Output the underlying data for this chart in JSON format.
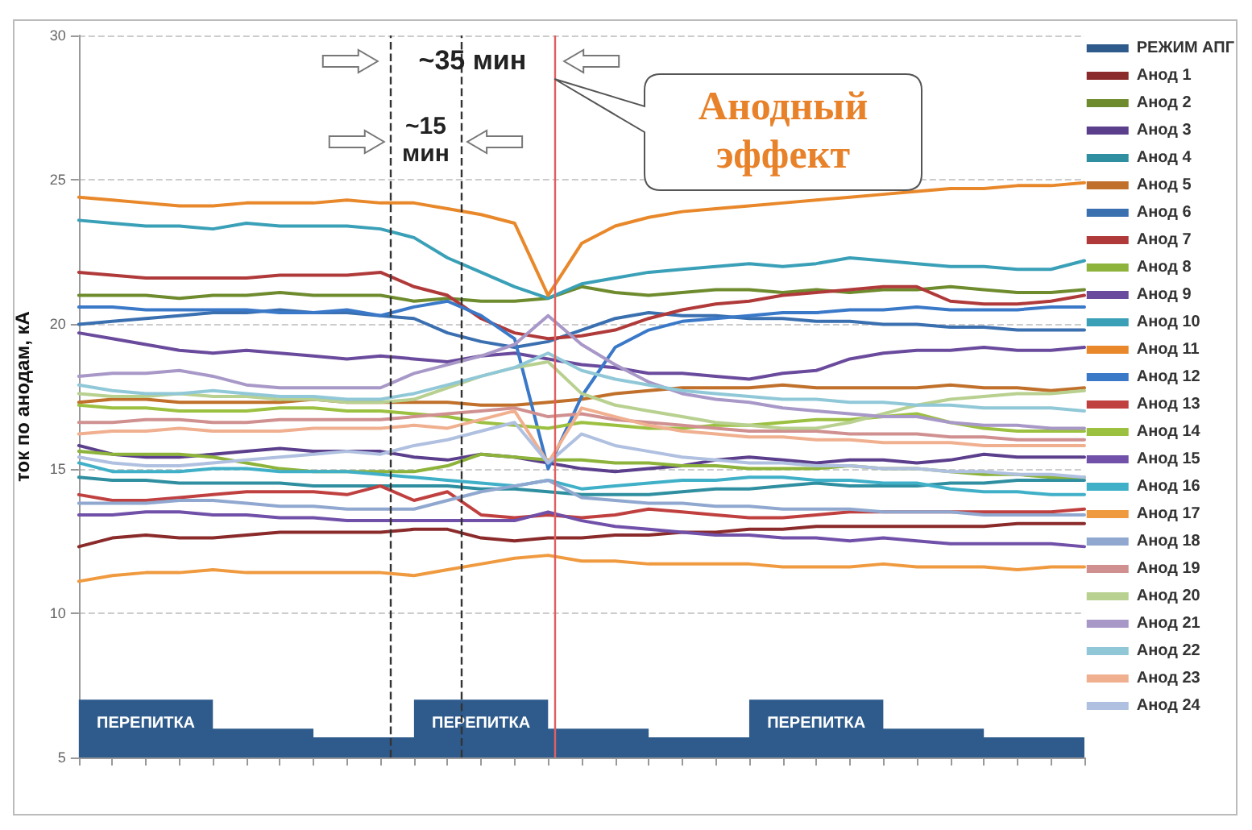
{
  "chart_data": {
    "type": "line",
    "ylabel": "ток по анодам, кА",
    "ylim": [
      5,
      30
    ],
    "yticks": [
      5,
      10,
      15,
      20,
      25,
      30
    ],
    "grid": "y",
    "legend": "right",
    "line_style": "solid",
    "categories": [
      null,
      null,
      null,
      null,
      null,
      null,
      null,
      null,
      null,
      null,
      null,
      null,
      null,
      null,
      null,
      null,
      null,
      null,
      null,
      null,
      null,
      null,
      null,
      null,
      null,
      null,
      null,
      null,
      null,
      null,
      null
    ],
    "annotations": [
      "~35 мин",
      "~15 мин",
      "Анодный эффект"
    ],
    "series": [
      {
        "name": "РЕЖИМ АПГ",
        "type": "area",
        "color": "#2e5b8c",
        "values": [
          7,
          7,
          7,
          7,
          6,
          6,
          6,
          5.7,
          5.7,
          5.7,
          7,
          7,
          7,
          7,
          6,
          6,
          6,
          5.7,
          5.7,
          5.7,
          7,
          7,
          7,
          7,
          6,
          6,
          6,
          5.7,
          5.7,
          5.7,
          5.7
        ],
        "value_labels": [
          null,
          null,
          "ПЕРЕПИТКА",
          null,
          null,
          null,
          null,
          null,
          null,
          null,
          null,
          null,
          "ПЕРЕПИТКА",
          null,
          null,
          null,
          null,
          null,
          null,
          null,
          null,
          null,
          "ПЕРЕПИТКА",
          null,
          null,
          null,
          null,
          null,
          null,
          null,
          null
        ]
      },
      {
        "name": "Анод 1",
        "color": "#8b2a2a",
        "values": [
          12.3,
          12.6,
          12.7,
          12.6,
          12.6,
          12.7,
          12.8,
          12.8,
          12.8,
          12.8,
          12.9,
          12.9,
          12.6,
          12.5,
          12.6,
          12.6,
          12.7,
          12.7,
          12.8,
          12.8,
          12.9,
          12.9,
          13.0,
          13.0,
          13.0,
          13.0,
          13.0,
          13.0,
          13.1,
          13.1,
          13.1
        ]
      },
      {
        "name": "Анод 2",
        "color": "#6e8b2e",
        "values": [
          21.0,
          21.0,
          21.0,
          20.9,
          21.0,
          21.0,
          21.1,
          21.0,
          21.0,
          21.0,
          20.8,
          20.9,
          20.8,
          20.8,
          20.9,
          21.3,
          21.1,
          21.0,
          21.1,
          21.2,
          21.2,
          21.1,
          21.2,
          21.1,
          21.2,
          21.2,
          21.3,
          21.2,
          21.1,
          21.1,
          21.2
        ]
      },
      {
        "name": "Анод 3",
        "color": "#5b3f8c",
        "values": [
          15.8,
          15.5,
          15.4,
          15.4,
          15.5,
          15.6,
          15.7,
          15.6,
          15.6,
          15.6,
          15.4,
          15.3,
          15.5,
          15.4,
          15.2,
          15.0,
          14.9,
          15.0,
          15.1,
          15.3,
          15.4,
          15.3,
          15.2,
          15.3,
          15.3,
          15.2,
          15.3,
          15.5,
          15.4,
          15.4,
          15.4
        ]
      },
      {
        "name": "Анод 4",
        "color": "#2f8fa0",
        "values": [
          14.7,
          14.6,
          14.6,
          14.5,
          14.5,
          14.5,
          14.5,
          14.4,
          14.4,
          14.4,
          14.4,
          14.4,
          14.3,
          14.3,
          14.2,
          14.1,
          14.1,
          14.1,
          14.2,
          14.3,
          14.3,
          14.4,
          14.5,
          14.4,
          14.4,
          14.4,
          14.5,
          14.5,
          14.6,
          14.6,
          14.6
        ]
      },
      {
        "name": "Анод 5",
        "color": "#c0702a",
        "values": [
          17.3,
          17.4,
          17.4,
          17.3,
          17.3,
          17.3,
          17.3,
          17.4,
          17.3,
          17.3,
          17.3,
          17.3,
          17.2,
          17.2,
          17.3,
          17.4,
          17.6,
          17.7,
          17.8,
          17.8,
          17.8,
          17.9,
          17.8,
          17.8,
          17.8,
          17.8,
          17.9,
          17.8,
          17.8,
          17.7,
          17.8
        ]
      },
      {
        "name": "Анод 6",
        "color": "#3a6fb0",
        "values": [
          20.0,
          20.1,
          20.2,
          20.3,
          20.4,
          20.4,
          20.5,
          20.4,
          20.4,
          20.3,
          20.2,
          19.7,
          19.4,
          19.2,
          19.4,
          19.8,
          20.2,
          20.4,
          20.3,
          20.3,
          20.2,
          20.2,
          20.1,
          20.1,
          20.0,
          20.0,
          19.9,
          19.9,
          19.8,
          19.8,
          19.8
        ]
      },
      {
        "name": "Анод 7",
        "color": "#b03a3a",
        "values": [
          21.8,
          21.7,
          21.6,
          21.6,
          21.6,
          21.6,
          21.7,
          21.7,
          21.7,
          21.8,
          21.3,
          21.0,
          20.2,
          19.7,
          19.5,
          19.6,
          19.8,
          20.2,
          20.5,
          20.7,
          20.8,
          21.0,
          21.1,
          21.2,
          21.3,
          21.3,
          20.8,
          20.7,
          20.7,
          20.8,
          21.0
        ]
      },
      {
        "name": "Анод 8",
        "color": "#8db33a",
        "values": [
          15.6,
          15.5,
          15.5,
          15.5,
          15.4,
          15.2,
          15.0,
          14.9,
          14.9,
          14.9,
          14.9,
          15.1,
          15.5,
          15.4,
          15.3,
          15.3,
          15.2,
          15.2,
          15.1,
          15.1,
          15.0,
          15.0,
          15.0,
          15.1,
          15.0,
          15.0,
          14.9,
          14.8,
          14.8,
          14.7,
          14.7
        ]
      },
      {
        "name": "Анод 9",
        "color": "#6a4a9c",
        "values": [
          19.7,
          19.5,
          19.3,
          19.1,
          19.0,
          19.1,
          19.0,
          18.9,
          18.8,
          18.9,
          18.8,
          18.7,
          18.9,
          19.0,
          18.8,
          18.6,
          18.5,
          18.3,
          18.3,
          18.2,
          18.1,
          18.3,
          18.4,
          18.8,
          19.0,
          19.1,
          19.1,
          19.2,
          19.1,
          19.1,
          19.2
        ]
      },
      {
        "name": "Анод 10",
        "color": "#3aa0b8",
        "values": [
          23.6,
          23.5,
          23.4,
          23.4,
          23.3,
          23.5,
          23.4,
          23.4,
          23.4,
          23.3,
          23.0,
          22.3,
          21.8,
          21.3,
          20.9,
          21.4,
          21.6,
          21.8,
          21.9,
          22.0,
          22.1,
          22.0,
          22.1,
          22.3,
          22.2,
          22.1,
          22.0,
          22.0,
          21.9,
          21.9,
          22.2
        ]
      },
      {
        "name": "Анод 11",
        "color": "#e8882a",
        "values": [
          24.4,
          24.3,
          24.2,
          24.1,
          24.1,
          24.2,
          24.2,
          24.2,
          24.3,
          24.2,
          24.2,
          24.0,
          23.8,
          23.5,
          21.0,
          22.8,
          23.4,
          23.7,
          23.9,
          24.0,
          24.1,
          24.2,
          24.3,
          24.4,
          24.5,
          24.6,
          24.7,
          24.7,
          24.8,
          24.8,
          24.9
        ]
      },
      {
        "name": "Анод 12",
        "color": "#3a78c8",
        "values": [
          20.6,
          20.6,
          20.5,
          20.5,
          20.5,
          20.5,
          20.4,
          20.4,
          20.5,
          20.3,
          20.6,
          20.8,
          20.3,
          19.5,
          15.0,
          17.5,
          19.2,
          19.8,
          20.1,
          20.2,
          20.3,
          20.4,
          20.4,
          20.5,
          20.5,
          20.6,
          20.5,
          20.5,
          20.5,
          20.6,
          20.6
        ]
      },
      {
        "name": "Анод 13",
        "color": "#c04040",
        "values": [
          14.1,
          13.9,
          13.9,
          14.0,
          14.1,
          14.2,
          14.2,
          14.2,
          14.1,
          14.4,
          13.9,
          14.2,
          13.4,
          13.3,
          13.4,
          13.3,
          13.4,
          13.6,
          13.5,
          13.4,
          13.3,
          13.3,
          13.4,
          13.5,
          13.5,
          13.5,
          13.5,
          13.5,
          13.5,
          13.5,
          13.6
        ]
      },
      {
        "name": "Анод 14",
        "color": "#9cc040",
        "values": [
          17.2,
          17.1,
          17.1,
          17.0,
          17.0,
          17.0,
          17.1,
          17.1,
          17.0,
          17.0,
          16.9,
          16.8,
          16.6,
          16.5,
          16.4,
          16.6,
          16.5,
          16.4,
          16.4,
          16.5,
          16.5,
          16.6,
          16.7,
          16.7,
          16.8,
          16.9,
          16.6,
          16.4,
          16.3,
          16.3,
          16.3
        ]
      },
      {
        "name": "Анод 15",
        "color": "#7050a8",
        "values": [
          13.4,
          13.4,
          13.5,
          13.5,
          13.4,
          13.4,
          13.3,
          13.3,
          13.2,
          13.2,
          13.2,
          13.2,
          13.2,
          13.2,
          13.5,
          13.2,
          13.0,
          12.9,
          12.8,
          12.7,
          12.7,
          12.6,
          12.6,
          12.5,
          12.6,
          12.5,
          12.4,
          12.4,
          12.4,
          12.4,
          12.3
        ]
      },
      {
        "name": "Анод 16",
        "color": "#40b0c8",
        "values": [
          15.2,
          14.9,
          14.9,
          14.9,
          15.0,
          15.0,
          14.9,
          14.9,
          14.9,
          14.8,
          14.7,
          14.6,
          14.5,
          14.4,
          14.6,
          14.3,
          14.4,
          14.5,
          14.6,
          14.6,
          14.7,
          14.7,
          14.6,
          14.6,
          14.5,
          14.5,
          14.3,
          14.2,
          14.2,
          14.1,
          14.1
        ]
      },
      {
        "name": "Анод 17",
        "color": "#f09a40",
        "values": [
          11.1,
          11.3,
          11.4,
          11.4,
          11.5,
          11.4,
          11.4,
          11.4,
          11.4,
          11.4,
          11.3,
          11.5,
          11.7,
          11.9,
          12.0,
          11.8,
          11.8,
          11.7,
          11.7,
          11.7,
          11.7,
          11.6,
          11.6,
          11.6,
          11.7,
          11.6,
          11.6,
          11.6,
          11.5,
          11.6,
          11.6
        ]
      },
      {
        "name": "Анод 18",
        "color": "#90a8d0",
        "values": [
          13.8,
          13.8,
          13.8,
          13.9,
          13.9,
          13.8,
          13.7,
          13.7,
          13.6,
          13.6,
          13.6,
          13.9,
          14.2,
          14.4,
          14.6,
          14.0,
          13.9,
          13.8,
          13.8,
          13.7,
          13.7,
          13.6,
          13.6,
          13.6,
          13.5,
          13.5,
          13.5,
          13.4,
          13.4,
          13.4,
          13.4
        ]
      },
      {
        "name": "Анод 19",
        "color": "#d09090",
        "values": [
          16.6,
          16.6,
          16.7,
          16.7,
          16.6,
          16.6,
          16.7,
          16.7,
          16.7,
          16.7,
          16.8,
          16.9,
          17.0,
          17.1,
          16.8,
          16.9,
          16.7,
          16.6,
          16.5,
          16.4,
          16.3,
          16.3,
          16.3,
          16.2,
          16.2,
          16.2,
          16.1,
          16.1,
          16.0,
          16.0,
          16.0
        ]
      },
      {
        "name": "Анод 20",
        "color": "#b8d090",
        "values": [
          17.6,
          17.5,
          17.5,
          17.6,
          17.5,
          17.5,
          17.4,
          17.4,
          17.3,
          17.3,
          17.4,
          17.8,
          18.2,
          18.5,
          18.7,
          17.6,
          17.2,
          17.0,
          16.8,
          16.6,
          16.5,
          16.4,
          16.4,
          16.6,
          16.9,
          17.2,
          17.4,
          17.5,
          17.6,
          17.6,
          17.7
        ]
      },
      {
        "name": "Анод 21",
        "color": "#a898c8",
        "values": [
          18.2,
          18.3,
          18.3,
          18.4,
          18.2,
          17.9,
          17.8,
          17.8,
          17.8,
          17.8,
          18.3,
          18.6,
          18.9,
          19.3,
          20.3,
          19.3,
          18.6,
          18.0,
          17.6,
          17.4,
          17.3,
          17.1,
          17.0,
          16.9,
          16.8,
          16.8,
          16.6,
          16.5,
          16.5,
          16.4,
          16.4
        ]
      },
      {
        "name": "Анод 22",
        "color": "#90c8d8",
        "values": [
          17.9,
          17.7,
          17.6,
          17.6,
          17.7,
          17.6,
          17.5,
          17.5,
          17.4,
          17.4,
          17.6,
          17.9,
          18.2,
          18.5,
          19.0,
          18.4,
          18.1,
          17.9,
          17.7,
          17.6,
          17.5,
          17.4,
          17.4,
          17.3,
          17.3,
          17.2,
          17.2,
          17.1,
          17.1,
          17.1,
          17.0
        ]
      },
      {
        "name": "Анод 23",
        "color": "#f0b090",
        "values": [
          16.2,
          16.3,
          16.3,
          16.4,
          16.3,
          16.3,
          16.3,
          16.4,
          16.4,
          16.4,
          16.5,
          16.4,
          16.7,
          17.0,
          15.2,
          17.1,
          16.8,
          16.5,
          16.3,
          16.2,
          16.1,
          16.1,
          16.0,
          16.0,
          15.9,
          15.9,
          15.9,
          15.8,
          15.8,
          15.8,
          15.8
        ]
      },
      {
        "name": "Анод 24",
        "color": "#b0c0e0",
        "values": [
          15.4,
          15.2,
          15.1,
          15.1,
          15.2,
          15.3,
          15.4,
          15.5,
          15.6,
          15.5,
          15.8,
          16.0,
          16.3,
          16.6,
          15.2,
          16.2,
          15.8,
          15.6,
          15.4,
          15.3,
          15.2,
          15.2,
          15.1,
          15.1,
          15.0,
          15.0,
          14.9,
          14.9,
          14.8,
          14.8,
          14.7
        ]
      }
    ]
  }
}
